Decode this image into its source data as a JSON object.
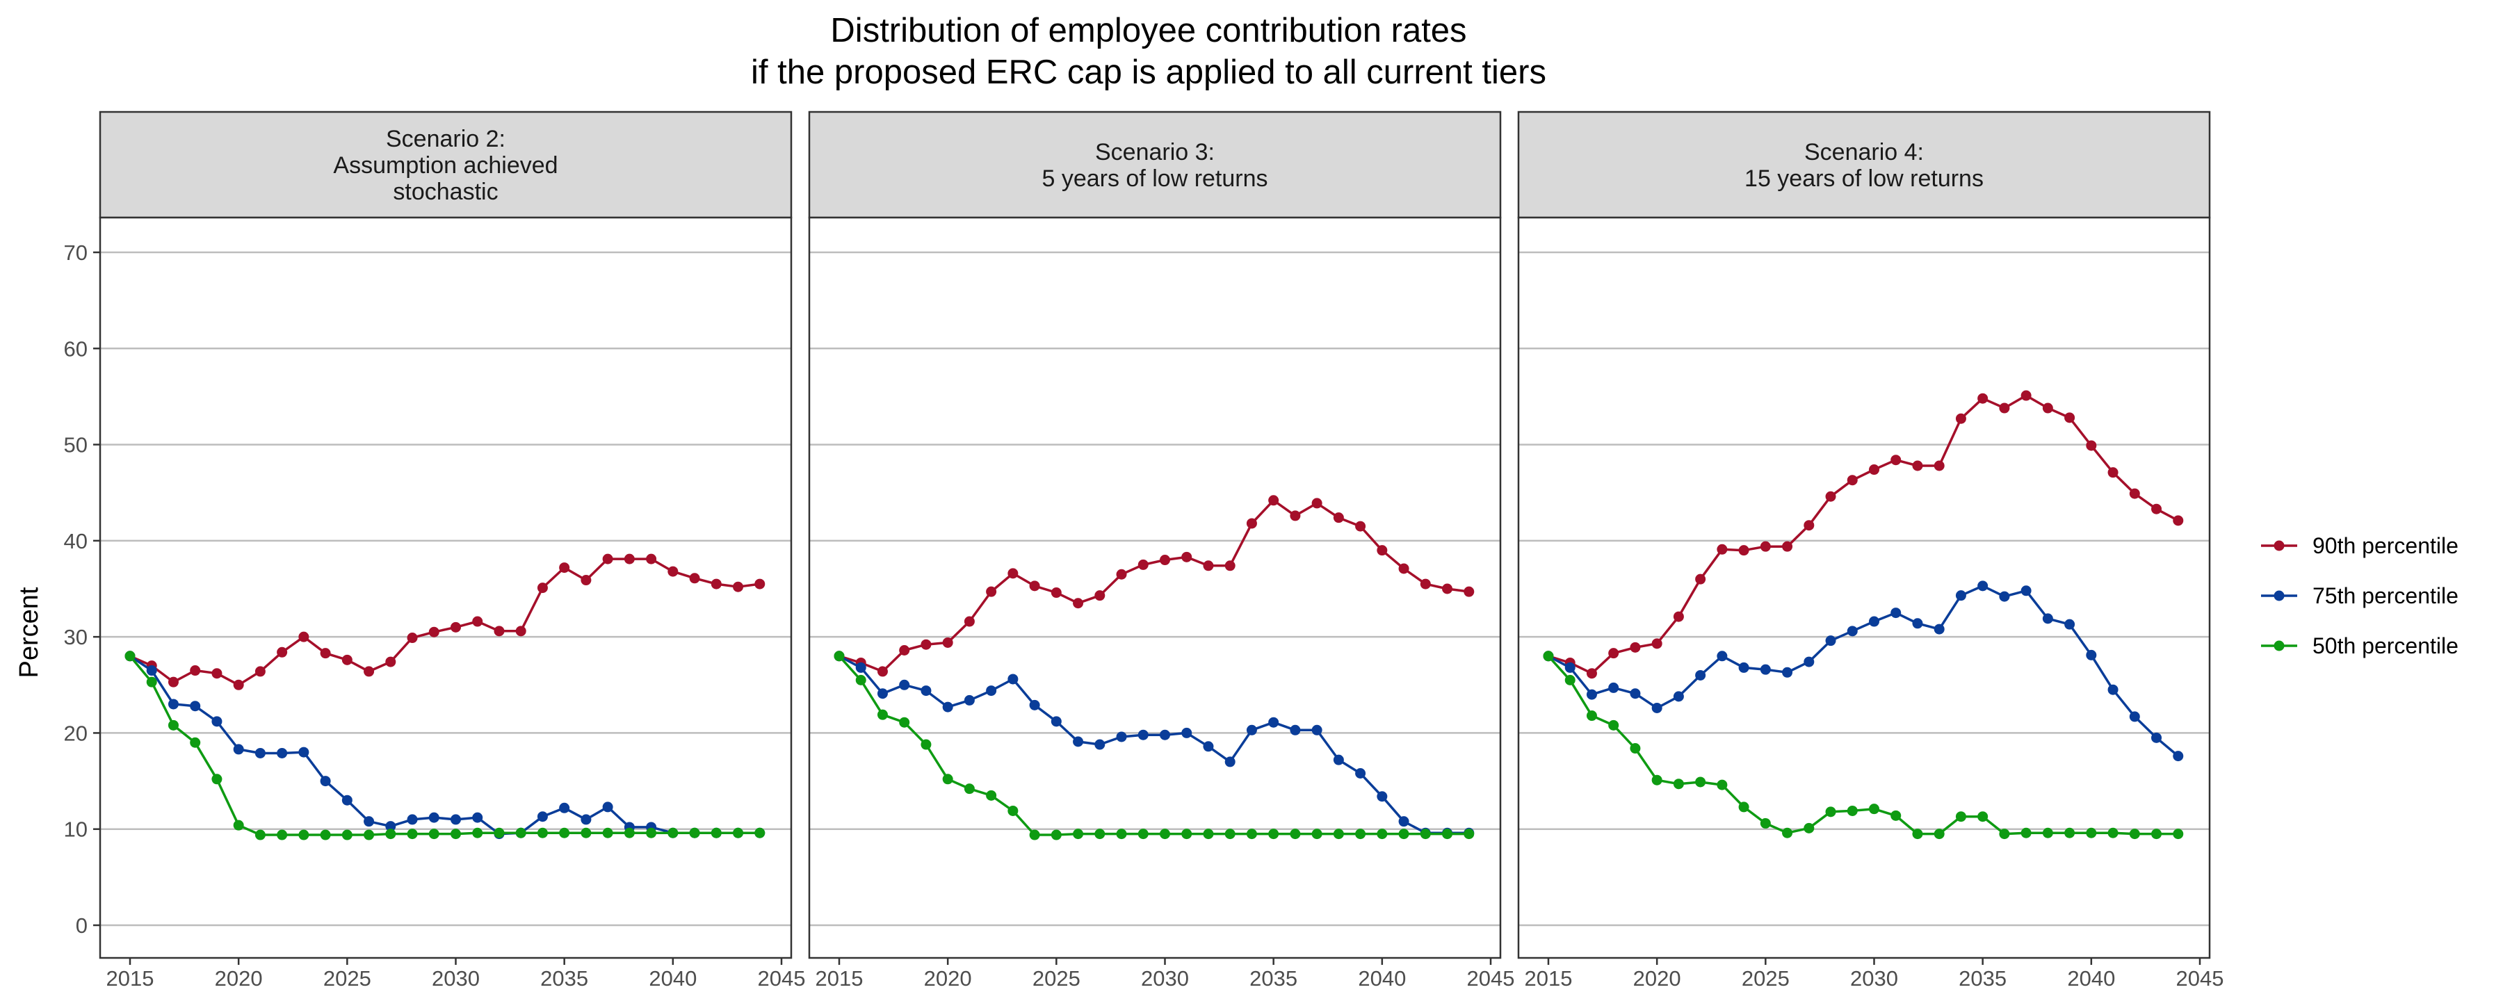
{
  "chart_data": {
    "type": "line",
    "title": [
      "Distribution of employee contribution rates",
      "if the proposed ERC cap is applied to all current tiers"
    ],
    "ylabel": "Percent",
    "xlabel": "",
    "ylim": [
      0,
      70
    ],
    "yticks": [
      0,
      10,
      20,
      30,
      40,
      50,
      60,
      70
    ],
    "xlim": [
      2015,
      2045
    ],
    "xticks": [
      2015,
      2020,
      2025,
      2030,
      2035,
      2040,
      2045
    ],
    "grid": "horizontal-major",
    "legend_position": "right",
    "legend": [
      {
        "name": "90th percentile",
        "color": "#a50f2a"
      },
      {
        "name": "75th percentile",
        "color": "#0a3d99"
      },
      {
        "name": "50th percentile",
        "color": "#0e9b12"
      }
    ],
    "x": [
      2015,
      2016,
      2017,
      2018,
      2019,
      2020,
      2021,
      2022,
      2023,
      2024,
      2025,
      2026,
      2027,
      2028,
      2029,
      2030,
      2031,
      2032,
      2033,
      2034,
      2035,
      2036,
      2037,
      2038,
      2039,
      2040,
      2041,
      2042,
      2043,
      2044
    ],
    "panels": [
      {
        "label": [
          "Scenario 2:",
          "Assumption achieved",
          "stochastic"
        ],
        "series": [
          {
            "name": "90th percentile",
            "values": [
              28.0,
              27.0,
              25.3,
              26.5,
              26.2,
              25.0,
              26.4,
              28.4,
              30.0,
              28.3,
              27.6,
              26.4,
              27.4,
              29.9,
              30.5,
              31.0,
              31.6,
              30.6,
              30.6,
              35.1,
              37.2,
              35.9,
              38.1,
              38.1,
              38.1,
              36.8,
              36.1,
              35.5,
              35.2,
              35.5
            ]
          },
          {
            "name": "75th percentile",
            "values": [
              28.0,
              26.5,
              23.0,
              22.8,
              21.2,
              18.3,
              17.9,
              17.9,
              18.0,
              15.0,
              13.0,
              10.8,
              10.3,
              11.0,
              11.2,
              11.0,
              11.2,
              9.5,
              9.6,
              11.3,
              12.2,
              11.0,
              12.3,
              10.2,
              10.2,
              9.6,
              9.6,
              9.6,
              9.6,
              9.6
            ]
          },
          {
            "name": "50th percentile",
            "values": [
              28.0,
              25.3,
              20.8,
              19.0,
              15.2,
              10.4,
              9.4,
              9.4,
              9.4,
              9.4,
              9.4,
              9.4,
              9.5,
              9.5,
              9.5,
              9.5,
              9.6,
              9.6,
              9.6,
              9.6,
              9.6,
              9.6,
              9.6,
              9.6,
              9.6,
              9.6,
              9.6,
              9.6,
              9.6,
              9.6
            ]
          }
        ]
      },
      {
        "label": [
          "Scenario 3:",
          "5 years of low returns"
        ],
        "series": [
          {
            "name": "90th percentile",
            "values": [
              28.0,
              27.3,
              26.4,
              28.6,
              29.2,
              29.4,
              31.6,
              34.7,
              36.6,
              35.3,
              34.6,
              33.5,
              34.3,
              36.5,
              37.5,
              38.0,
              38.3,
              37.4,
              37.4,
              41.8,
              44.2,
              42.6,
              43.9,
              42.4,
              41.5,
              39.0,
              37.1,
              35.5,
              35.0,
              34.7
            ]
          },
          {
            "name": "75th percentile",
            "values": [
              28.0,
              26.8,
              24.1,
              25.0,
              24.4,
              22.7,
              23.4,
              24.4,
              25.6,
              22.9,
              21.2,
              19.1,
              18.8,
              19.6,
              19.8,
              19.8,
              20.0,
              18.6,
              17.0,
              20.3,
              21.1,
              20.3,
              20.3,
              17.2,
              15.8,
              13.4,
              10.8,
              9.6,
              9.6,
              9.6
            ]
          },
          {
            "name": "50th percentile",
            "values": [
              28.0,
              25.5,
              21.9,
              21.1,
              18.8,
              15.2,
              14.2,
              13.5,
              11.9,
              9.4,
              9.4,
              9.5,
              9.5,
              9.5,
              9.5,
              9.5,
              9.5,
              9.5,
              9.5,
              9.5,
              9.5,
              9.5,
              9.5,
              9.5,
              9.5,
              9.5,
              9.5,
              9.5,
              9.5,
              9.5
            ]
          }
        ]
      },
      {
        "label": [
          "Scenario 4:",
          "15 years of low returns"
        ],
        "series": [
          {
            "name": "90th percentile",
            "values": [
              28.0,
              27.3,
              26.2,
              28.3,
              28.9,
              29.3,
              32.1,
              36.0,
              39.1,
              39.0,
              39.4,
              39.4,
              41.6,
              44.6,
              46.3,
              47.4,
              48.4,
              47.8,
              47.8,
              52.7,
              54.8,
              53.8,
              55.1,
              53.8,
              52.8,
              49.9,
              47.1,
              44.9,
              43.3,
              42.1
            ]
          },
          {
            "name": "75th percentile",
            "values": [
              28.0,
              26.8,
              24.0,
              24.7,
              24.1,
              22.6,
              23.8,
              26.0,
              28.0,
              26.8,
              26.6,
              26.3,
              27.4,
              29.6,
              30.6,
              31.6,
              32.5,
              31.4,
              30.8,
              34.3,
              35.3,
              34.2,
              34.8,
              31.9,
              31.3,
              28.1,
              24.5,
              21.7,
              19.5,
              17.6
            ]
          },
          {
            "name": "50th percentile",
            "values": [
              28.0,
              25.5,
              21.8,
              20.8,
              18.4,
              15.1,
              14.7,
              14.9,
              14.6,
              12.3,
              10.6,
              9.6,
              10.1,
              11.8,
              11.9,
              12.1,
              11.4,
              9.5,
              9.5,
              11.3,
              11.3,
              9.5,
              9.6,
              9.6,
              9.6,
              9.6,
              9.6,
              9.5,
              9.5,
              9.5
            ]
          }
        ]
      }
    ]
  }
}
